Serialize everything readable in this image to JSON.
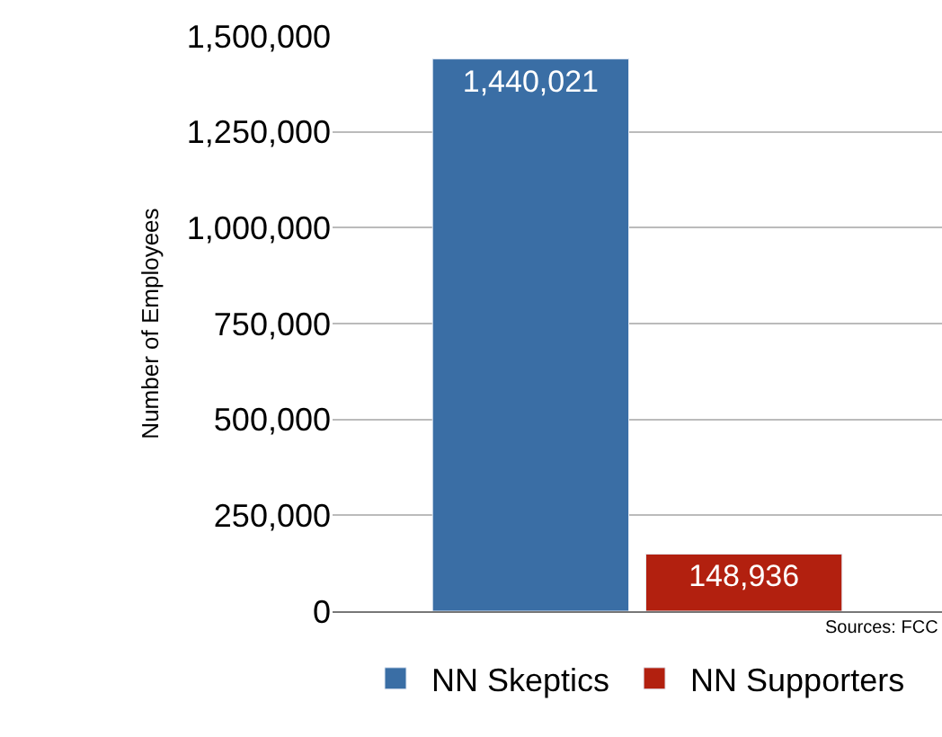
{
  "chart_data": {
    "type": "bar",
    "ylabel": "Number of Employees",
    "categories": [
      null
    ],
    "series": [
      {
        "name": "NN Skeptics",
        "color": "#3a6ea5",
        "values": [
          1440021
        ],
        "value_labels": [
          "1,440,021"
        ]
      },
      {
        "name": "NN Supporters",
        "color": "#b2200f",
        "values": [
          148936
        ],
        "value_labels": [
          "148,936"
        ]
      }
    ],
    "ylim": [
      0,
      1500000
    ],
    "yticks": [
      {
        "value": 0,
        "label": "0"
      },
      {
        "value": 250000,
        "label": "250,000"
      },
      {
        "value": 500000,
        "label": "500,000"
      },
      {
        "value": 750000,
        "label": "750,000"
      },
      {
        "value": 1000000,
        "label": "1,000,000"
      },
      {
        "value": 1250000,
        "label": "1,250,000"
      },
      {
        "value": 1500000,
        "label": "1,500,000"
      }
    ],
    "grid": "y",
    "legend": "bottom",
    "annotations": [
      "Sources: FCC"
    ]
  }
}
